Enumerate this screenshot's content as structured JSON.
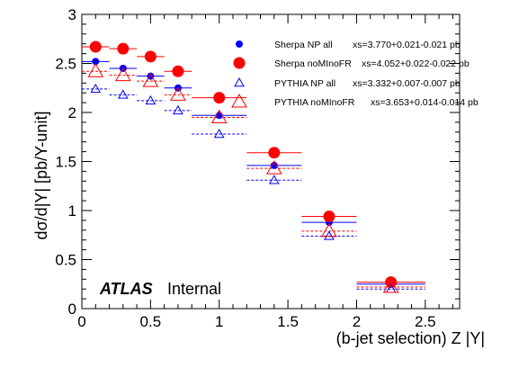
{
  "chart_data": {
    "type": "scatter",
    "xlabel": "(b-jet selection)  Z |Y|",
    "ylabel": "dσ/d|Y| [pb/Y-unit]",
    "xlim": [
      0,
      2.75
    ],
    "ylim": [
      0,
      3
    ],
    "x_ticks": [
      0,
      0.5,
      1,
      1.5,
      2,
      2.5
    ],
    "x_tick_labels": [
      "0",
      "0.5",
      "1",
      "1.5",
      "2",
      "2.5"
    ],
    "y_ticks": [
      0,
      0.5,
      1,
      1.5,
      2,
      2.5,
      3
    ],
    "y_tick_labels": [
      "0",
      "0.5",
      "1",
      "1.5",
      "2",
      "2.5",
      "3"
    ],
    "bins": [
      [
        0,
        0.2
      ],
      [
        0.2,
        0.4
      ],
      [
        0.4,
        0.6
      ],
      [
        0.6,
        0.8
      ],
      [
        0.8,
        1.2
      ],
      [
        1.2,
        1.6
      ],
      [
        1.6,
        2.0
      ],
      [
        2.0,
        2.5
      ]
    ],
    "series": [
      {
        "name": "Sherpa NP all",
        "xs": "xs=3.770+0.021-0.021 pb",
        "color": "#0000ff",
        "marker": "dot",
        "line": "solid",
        "x": [
          0.1,
          0.3,
          0.5,
          0.7,
          1.0,
          1.4,
          1.8,
          2.25
        ],
        "values": [
          2.52,
          2.45,
          2.37,
          2.25,
          1.97,
          1.46,
          0.88,
          0.25
        ]
      },
      {
        "name": "Sherpa noMInoFR",
        "xs": "xs=4.052+0.022-0.022 pb",
        "color": "#ff0000",
        "marker": "bigdot",
        "line": "solid",
        "x": [
          0.1,
          0.3,
          0.5,
          0.7,
          1.0,
          1.4,
          1.8,
          2.25
        ],
        "values": [
          2.67,
          2.65,
          2.57,
          2.42,
          2.15,
          1.59,
          0.94,
          0.27
        ]
      },
      {
        "name": "PYTHIA NP all",
        "xs": "xs=3.332+0.007-0.007 pb",
        "color": "#0000ff",
        "marker": "triangle",
        "line": "dashed",
        "x": [
          0.1,
          0.3,
          0.5,
          0.7,
          1.0,
          1.4,
          1.8,
          2.25
        ],
        "values": [
          2.24,
          2.18,
          2.12,
          2.02,
          1.78,
          1.31,
          0.74,
          0.2
        ]
      },
      {
        "name": "PYTHIA noMInoFR",
        "xs": "xs=3.653+0.014-0.014 pb",
        "color": "#ff0000",
        "marker": "bigtriangle",
        "line": "dashed",
        "x": [
          0.1,
          0.3,
          0.5,
          0.7,
          1.0,
          1.4,
          1.8,
          2.25
        ],
        "values": [
          2.42,
          2.38,
          2.32,
          2.18,
          1.95,
          1.43,
          0.79,
          0.22
        ]
      }
    ],
    "legend_position": "top-right",
    "grid": false
  },
  "annotation": {
    "atlas": "ATLAS",
    "internal": "Internal"
  }
}
